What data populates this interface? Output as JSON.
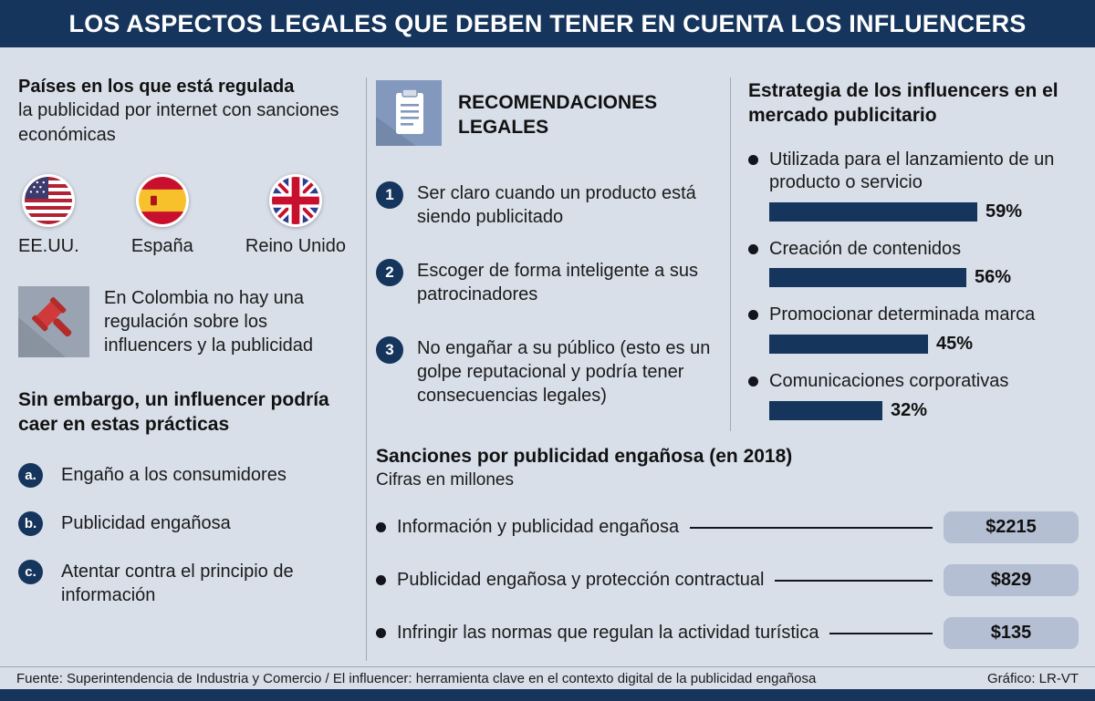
{
  "header": {
    "title": "LOS ASPECTOS LEGALES QUE DEBEN TENER EN CUENTA LOS INFLUENCERS"
  },
  "left": {
    "countries_heading_bold": "Países en los que está regulada",
    "countries_heading_rest": "la publicidad por internet con sanciones económicas",
    "countries": [
      {
        "name": "EE.UU.",
        "flag_icon": "usa-flag"
      },
      {
        "name": "España",
        "flag_icon": "spain-flag"
      },
      {
        "name": "Reino Unido",
        "flag_icon": "uk-flag"
      }
    ],
    "colombia_note": "En Colombia no hay una regulación sobre los influencers y la publicidad",
    "practices_heading": "Sin embargo, un influencer podría caer en estas prácticas",
    "practices": [
      {
        "badge": "a.",
        "label": "Engaño a los consumidores"
      },
      {
        "badge": "b.",
        "label": "Publicidad engañosa"
      },
      {
        "badge": "c.",
        "label": "Atentar contra el principio de información"
      }
    ]
  },
  "recommendations": {
    "heading": "RECOMENDACIONES LEGALES",
    "icon": "clipboard-icon",
    "items": [
      {
        "num": "1",
        "text": "Ser claro cuando un producto está siendo publicitado"
      },
      {
        "num": "2",
        "text": "Escoger de forma inteligente a sus patrocinadores"
      },
      {
        "num": "3",
        "text": "No engañar a su público (esto es un golpe reputacional y podría tener consecuencias legales)"
      }
    ]
  },
  "footer": {
    "source": "Fuente: Superintendencia de Industria y Comercio / El influencer: herramienta clave en el contexto digital de la publicidad engañosa",
    "credit": "Gráfico: LR-VT"
  },
  "colors": {
    "navy": "#16355d",
    "background": "#d8dfe9",
    "pill": "#b5bfd3",
    "gavel_red": "#d03a3a",
    "divider": "#9fa9bb"
  },
  "chart_data": [
    {
      "type": "bar",
      "orientation": "horizontal",
      "title": "Estrategia de los influencers en el mercado publicitario",
      "categories": [
        "Utilizada para el lanzamiento de un producto o servicio",
        "Creación de contenidos",
        "Promocionar determinada marca",
        "Comunicaciones corporativas"
      ],
      "values": [
        59,
        56,
        45,
        32
      ],
      "value_labels": [
        "59%",
        "56%",
        "45%",
        "32%"
      ],
      "unit": "%",
      "xlim": [
        0,
        100
      ],
      "legend": false,
      "grid": false
    },
    {
      "type": "bar",
      "orientation": "horizontal",
      "title": "Sanciones por publicidad engañosa (en 2018)",
      "subtitle": "Cifras en millones",
      "categories": [
        "Información y publicidad engañosa",
        "Publicidad engañosa y protección contractual",
        "Infringir las normas que regulan la actividad turística"
      ],
      "values": [
        2215,
        829,
        135
      ],
      "value_labels": [
        "$2215",
        "$829",
        "$135"
      ],
      "unit": "millones",
      "legend": false,
      "grid": false
    }
  ]
}
